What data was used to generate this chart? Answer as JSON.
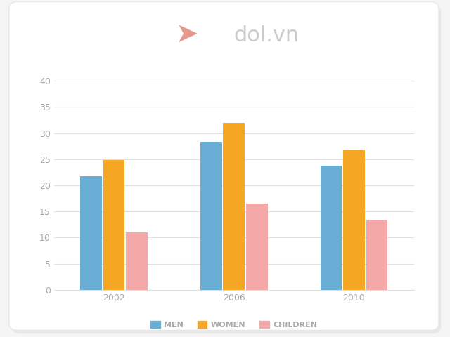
{
  "categories": [
    "2002",
    "2006",
    "2010"
  ],
  "series": {
    "MEN": [
      21.7,
      28.3,
      23.8
    ],
    "WOMEN": [
      24.8,
      32.0,
      26.8
    ],
    "CHILDREN": [
      11.0,
      16.5,
      13.4
    ]
  },
  "colors": {
    "MEN": "#6aaed6",
    "WOMEN": "#f5a623",
    "CHILDREN": "#f4a8a8"
  },
  "ylim": [
    0,
    40
  ],
  "yticks": [
    0,
    5,
    10,
    15,
    20,
    25,
    30,
    35,
    40
  ],
  "bar_width": 0.18,
  "legend_labels": [
    "MEN",
    "WOMEN",
    "CHILDREN"
  ],
  "background_color": "#f5f5f5",
  "card_color": "#ffffff",
  "grid_color": "#e0e0e0",
  "tick_color": "#aaaaaa",
  "label_fontsize": 9,
  "legend_fontsize": 8,
  "logo_text": "dol.vn",
  "logo_color": "#cccccc",
  "logo_fontsize": 22,
  "figsize": [
    6.4,
    4.8
  ],
  "dpi": 100
}
